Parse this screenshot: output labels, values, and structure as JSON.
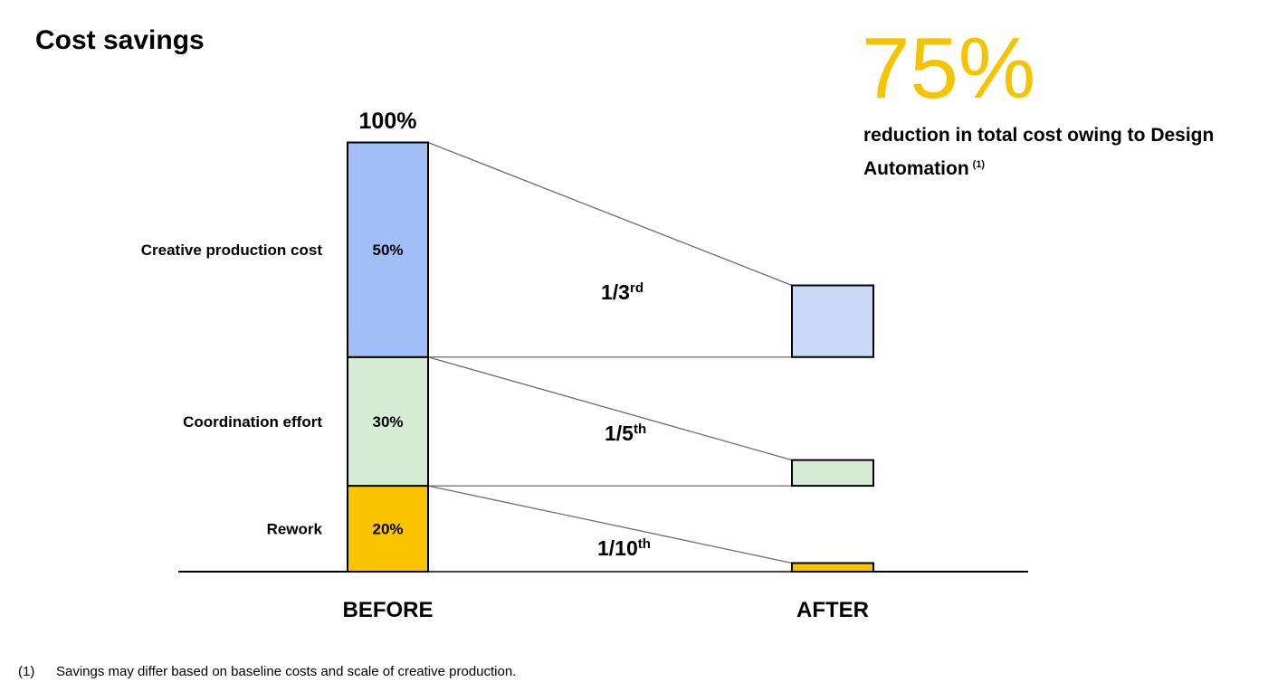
{
  "title": "Cost savings",
  "headline": {
    "value": "75%",
    "text": "reduction in total cost owing to Design Automation",
    "note_marker": "(1)",
    "color": "#f5c400"
  },
  "footnote": {
    "marker": "(1)",
    "text": "Savings may differ based on baseline costs and scale of creative production."
  },
  "chart_data": {
    "type": "bar",
    "categories": [
      "BEFORE",
      "AFTER"
    ],
    "total_label": "100%",
    "grid": false,
    "segments": [
      {
        "name": "Rework",
        "before": 20,
        "before_label": "20%",
        "after": 2,
        "ratio_base": "1/10",
        "ratio_suffix": "th",
        "color": "#fbc400",
        "after_color": "#fbc400"
      },
      {
        "name": "Coordination effort",
        "before": 30,
        "before_label": "30%",
        "after": 6,
        "ratio_base": "1/5",
        "ratio_suffix": "th",
        "color": "#d5ebd3",
        "after_color": "#d5ebd3"
      },
      {
        "name": "Creative production cost",
        "before": 50,
        "before_label": "50%",
        "after": 16.7,
        "ratio_base": "1/3",
        "ratio_suffix": "rd",
        "color": "#a1bff6",
        "after_color": "#c9daf8"
      }
    ]
  }
}
